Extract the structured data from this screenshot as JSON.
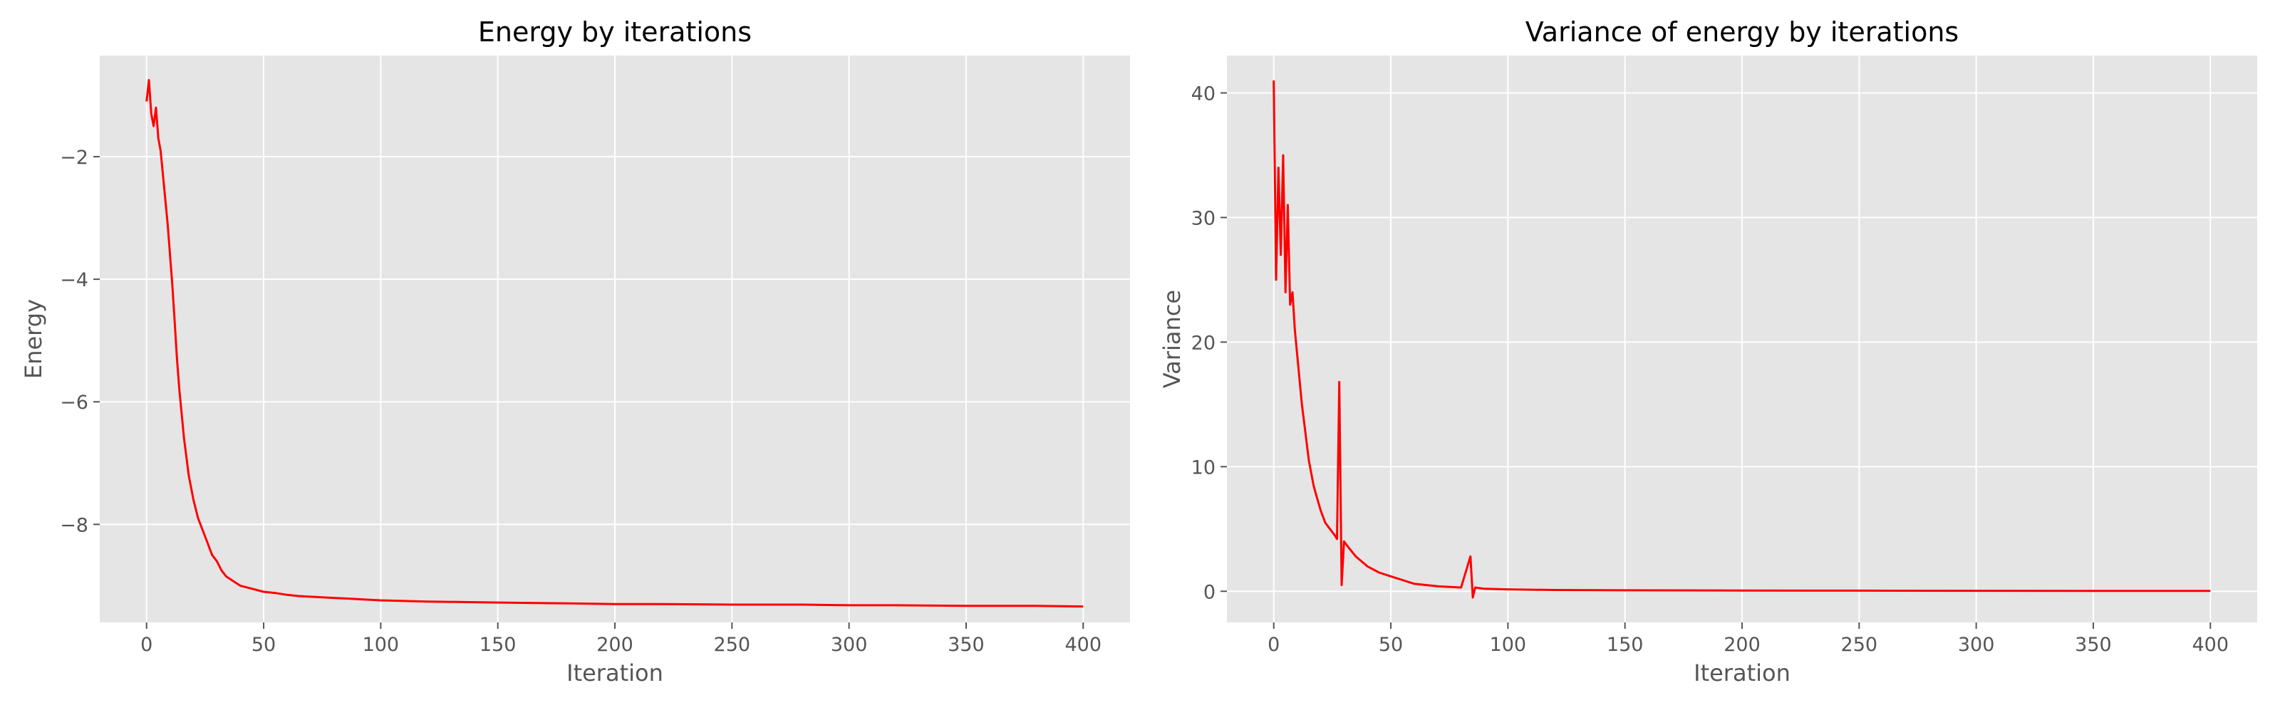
{
  "chart_data": [
    {
      "type": "line",
      "title": "Energy by iterations",
      "xlabel": "Iteration",
      "ylabel": "Energy",
      "xlim": [
        -20,
        420
      ],
      "ylim": [
        -9.6,
        -0.35
      ],
      "xticks": [
        0,
        50,
        100,
        150,
        200,
        250,
        300,
        350,
        400
      ],
      "yticks": [
        -8,
        -6,
        -4,
        -2
      ],
      "xtick_labels": [
        "0",
        "50",
        "100",
        "150",
        "200",
        "250",
        "300",
        "350",
        "400"
      ],
      "ytick_labels": [
        "−8",
        "−6",
        "−4",
        "−2"
      ],
      "grid": true,
      "series": [
        {
          "color": "#ff0000",
          "x": [
            0,
            1,
            2,
            3,
            4,
            5,
            6,
            7,
            8,
            9,
            10,
            11,
            12,
            13,
            14,
            15,
            16,
            17,
            18,
            19,
            20,
            22,
            24,
            26,
            28,
            30,
            32,
            34,
            36,
            38,
            40,
            45,
            50,
            55,
            60,
            65,
            70,
            75,
            80,
            85,
            90,
            100,
            120,
            140,
            160,
            180,
            200,
            220,
            250,
            280,
            300,
            320,
            350,
            380,
            400
          ],
          "y": [
            -1.1,
            -0.75,
            -1.3,
            -1.5,
            -1.2,
            -1.7,
            -1.9,
            -2.3,
            -2.7,
            -3.1,
            -3.6,
            -4.1,
            -4.7,
            -5.3,
            -5.8,
            -6.2,
            -6.6,
            -6.9,
            -7.2,
            -7.4,
            -7.6,
            -7.9,
            -8.1,
            -8.3,
            -8.5,
            -8.6,
            -8.75,
            -8.85,
            -8.9,
            -8.95,
            -9.0,
            -9.05,
            -9.1,
            -9.12,
            -9.15,
            -9.17,
            -9.18,
            -9.19,
            -9.2,
            -9.21,
            -9.22,
            -9.24,
            -9.26,
            -9.27,
            -9.28,
            -9.29,
            -9.3,
            -9.3,
            -9.31,
            -9.31,
            -9.32,
            -9.32,
            -9.33,
            -9.33,
            -9.34
          ]
        }
      ]
    },
    {
      "type": "line",
      "title": "Variance of energy by iterations",
      "xlabel": "Iteration",
      "ylabel": "Variance",
      "xlim": [
        -20,
        420
      ],
      "ylim": [
        -2.5,
        43
      ],
      "xticks": [
        0,
        50,
        100,
        150,
        200,
        250,
        300,
        350,
        400
      ],
      "yticks": [
        0,
        10,
        20,
        30,
        40
      ],
      "xtick_labels": [
        "0",
        "50",
        "100",
        "150",
        "200",
        "250",
        "300",
        "350",
        "400"
      ],
      "ytick_labels": [
        "0",
        "10",
        "20",
        "30",
        "40"
      ],
      "grid": true,
      "series": [
        {
          "color": "#ff0000",
          "x": [
            0,
            1,
            2,
            3,
            4,
            5,
            6,
            7,
            8,
            9,
            10,
            11,
            12,
            13,
            14,
            15,
            16,
            17,
            18,
            20,
            22,
            24,
            26,
            27,
            28,
            29,
            30,
            32,
            35,
            40,
            45,
            50,
            55,
            60,
            70,
            80,
            84,
            85,
            86,
            90,
            100,
            120,
            150,
            200,
            250,
            300,
            350,
            400
          ],
          "y": [
            41,
            25,
            34,
            27,
            35,
            24,
            31,
            23,
            24,
            21,
            19,
            17,
            15,
            13.5,
            12,
            10.5,
            9.5,
            8.5,
            7.8,
            6.5,
            5.5,
            5.0,
            4.5,
            4.2,
            16.8,
            0.5,
            4.0,
            3.5,
            2.8,
            2.0,
            1.5,
            1.2,
            0.9,
            0.6,
            0.4,
            0.3,
            2.8,
            -0.5,
            0.3,
            0.2,
            0.15,
            0.1,
            0.08,
            0.06,
            0.05,
            0.04,
            0.03,
            0.03
          ]
        }
      ]
    }
  ]
}
